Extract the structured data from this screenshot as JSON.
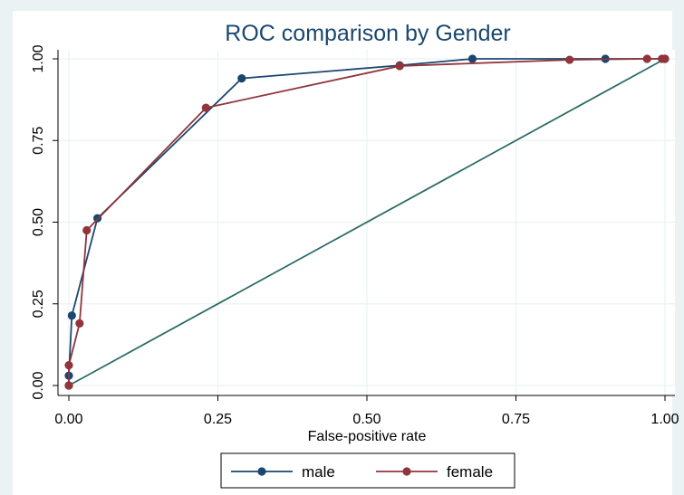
{
  "chart_data": {
    "type": "line",
    "title": "ROC comparison by Gender",
    "xlabel": "False-positive rate",
    "ylabel": "",
    "xlim": [
      0,
      1
    ],
    "ylim": [
      0,
      1
    ],
    "xticks": [
      "0.00",
      "0.25",
      "0.50",
      "0.75",
      "1.00"
    ],
    "yticks": [
      "0.00",
      "0.25",
      "0.50",
      "0.75",
      "1.00"
    ],
    "grid": true,
    "legend_position": "bottom",
    "series": [
      {
        "name": "male",
        "color": "#1a476f",
        "x": [
          0,
          0,
          0.005,
          0.048,
          0.29,
          0.555,
          0.677,
          0.9,
          1.0
        ],
        "y": [
          0,
          0.03,
          0.214,
          0.512,
          0.94,
          0.98,
          1.0,
          1.0,
          1.0
        ]
      },
      {
        "name": "female",
        "color": "#90353b",
        "x": [
          0,
          0,
          0.018,
          0.03,
          0.23,
          0.555,
          0.84,
          0.97,
          0.995,
          1.0
        ],
        "y": [
          0,
          0.062,
          0.19,
          0.475,
          0.85,
          0.978,
          0.997,
          1.0,
          1.0,
          1.0
        ]
      },
      {
        "name": "",
        "color": "#2d6d66",
        "markers": false,
        "x": [
          0,
          1
        ],
        "y": [
          0,
          1
        ]
      }
    ]
  }
}
